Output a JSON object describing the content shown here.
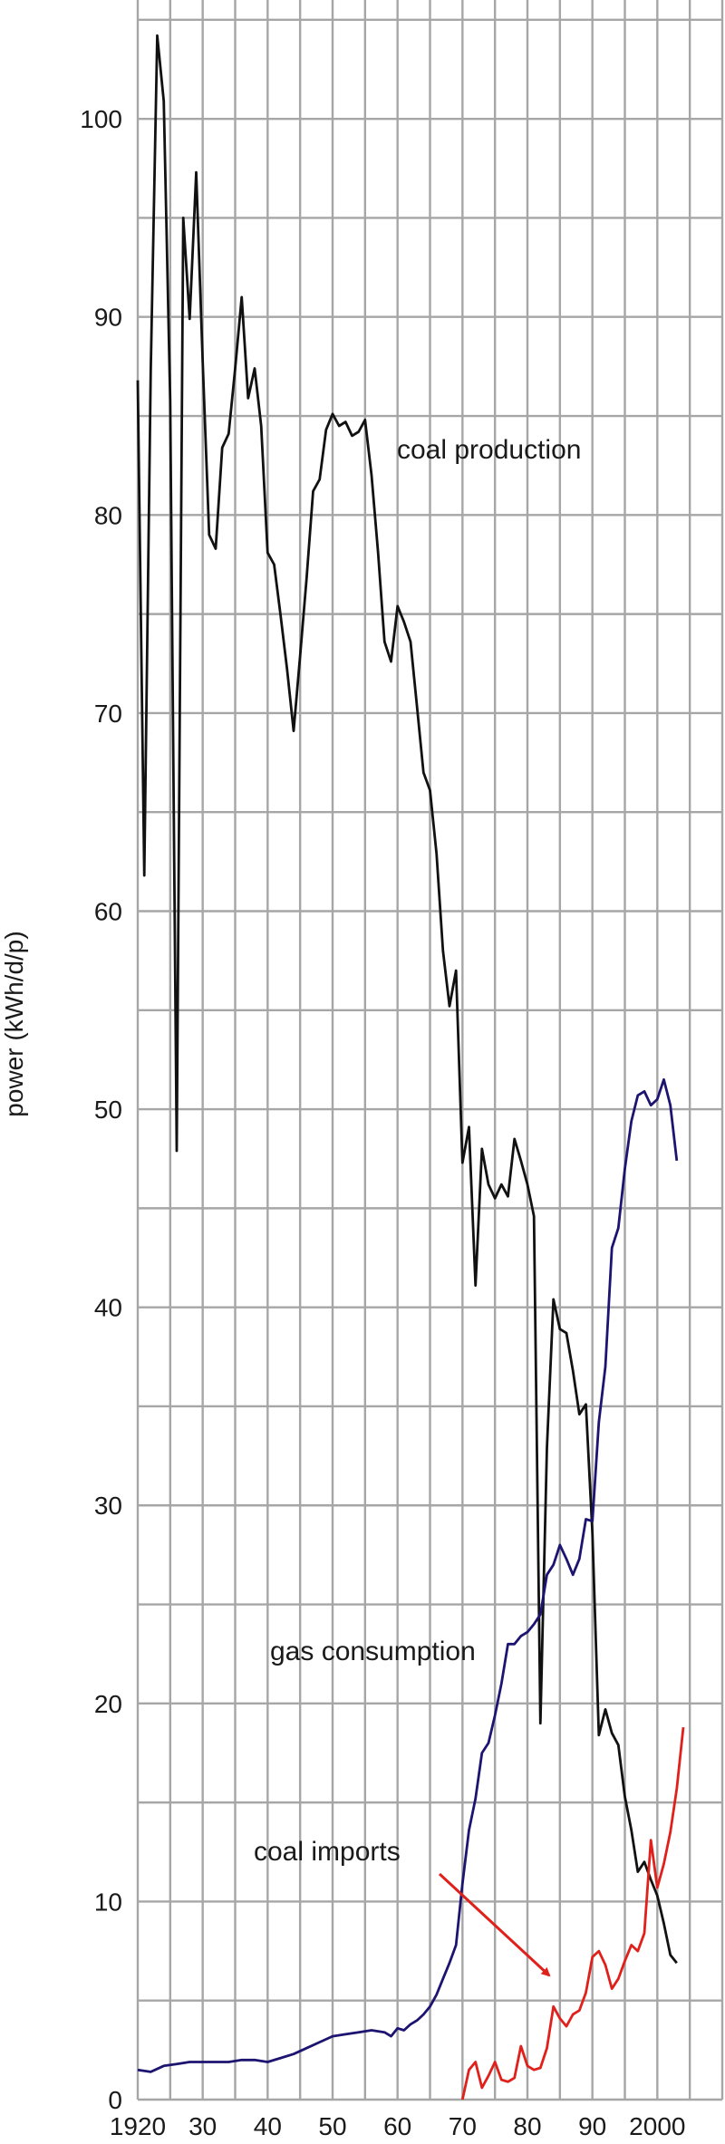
{
  "chart_data": {
    "type": "line",
    "title": "",
    "xlabel": "",
    "ylabel": "power (kWh/d/p)",
    "xlim": [
      1920,
      2010
    ],
    "ylim": [
      0,
      106
    ],
    "grid": true,
    "x_ticks": [
      {
        "value": 1920,
        "label": "1920"
      },
      {
        "value": 1930,
        "label": "30"
      },
      {
        "value": 1940,
        "label": "40"
      },
      {
        "value": 1950,
        "label": "50"
      },
      {
        "value": 1960,
        "label": "60"
      },
      {
        "value": 1970,
        "label": "70"
      },
      {
        "value": 1980,
        "label": "80"
      },
      {
        "value": 1990,
        "label": "90"
      },
      {
        "value": 2000,
        "label": "2000"
      }
    ],
    "y_ticks": [
      {
        "value": 0,
        "label": "0"
      },
      {
        "value": 10,
        "label": "10"
      },
      {
        "value": 20,
        "label": "20"
      },
      {
        "value": 30,
        "label": "30"
      },
      {
        "value": 40,
        "label": "40"
      },
      {
        "value": 50,
        "label": "50"
      },
      {
        "value": 60,
        "label": "60"
      },
      {
        "value": 70,
        "label": "70"
      },
      {
        "value": 80,
        "label": "80"
      },
      {
        "value": 90,
        "label": "90"
      },
      {
        "value": 100,
        "label": "100"
      }
    ],
    "series": [
      {
        "name": "coal production",
        "color": "#111111",
        "x": [
          1920,
          1921,
          1922,
          1923,
          1924,
          1925,
          1926,
          1927,
          1928,
          1929,
          1930,
          1931,
          1932,
          1933,
          1934,
          1935,
          1936,
          1937,
          1938,
          1939,
          1940,
          1941,
          1942,
          1943,
          1944,
          1945,
          1946,
          1947,
          1948,
          1949,
          1950,
          1951,
          1952,
          1953,
          1954,
          1955,
          1956,
          1957,
          1958,
          1959,
          1960,
          1961,
          1962,
          1963,
          1964,
          1965,
          1966,
          1967,
          1968,
          1969,
          1970,
          1971,
          1972,
          1973,
          1974,
          1975,
          1976,
          1977,
          1978,
          1979,
          1980,
          1981,
          1982,
          1983,
          1984,
          1985,
          1986,
          1987,
          1988,
          1989,
          1990,
          1991,
          1992,
          1993,
          1994,
          1995,
          1996,
          1997,
          1998,
          1999,
          2000,
          2001,
          2002,
          2003,
          2004,
          2005,
          2006
        ],
        "values": [
          86.8,
          61.8,
          87.2,
          104.2,
          100.9,
          85.8,
          47.9,
          95.0,
          89.9,
          97.3,
          87.7,
          79.0,
          78.3,
          83.4,
          84.1,
          87.4,
          91.0,
          85.9,
          87.4,
          84.5,
          78.1,
          77.5,
          74.9,
          72.2,
          69.1,
          72.9,
          76.8,
          81.2,
          81.8,
          84.3,
          85.1,
          84.5,
          84.7,
          84.0,
          84.2,
          84.8,
          82.0,
          78.1,
          73.6,
          72.6,
          75.4,
          74.6,
          73.6,
          70.3,
          67.0,
          66.1,
          62.9,
          58.0,
          55.2,
          57.0,
          47.3,
          49.1,
          41.1,
          48.0,
          46.2,
          45.5,
          46.2,
          45.6,
          48.5,
          47.4,
          46.2,
          44.6,
          19.0,
          32.9,
          40.4,
          38.9,
          38.7,
          36.8,
          34.6,
          35.1,
          28.6,
          18.4,
          19.7,
          18.5,
          17.9,
          15.3,
          13.6,
          11.5,
          12.0,
          11.1,
          10.3,
          8.9,
          7.3,
          6.9,
          null,
          null,
          null
        ]
      },
      {
        "name": "gas consumption",
        "color": "#1c1470",
        "x": [
          1920,
          1922,
          1924,
          1926,
          1928,
          1930,
          1932,
          1934,
          1936,
          1938,
          1940,
          1942,
          1944,
          1946,
          1948,
          1950,
          1952,
          1954,
          1956,
          1958,
          1959,
          1960,
          1961,
          1962,
          1963,
          1964,
          1965,
          1966,
          1967,
          1968,
          1969,
          1970,
          1971,
          1972,
          1973,
          1974,
          1975,
          1976,
          1977,
          1978,
          1979,
          1980,
          1981,
          1982,
          1983,
          1984,
          1985,
          1986,
          1987,
          1988,
          1989,
          1990,
          1991,
          1992,
          1993,
          1994,
          1995,
          1996,
          1997,
          1998,
          1999,
          2000,
          2001,
          2002,
          2003,
          2004,
          2005,
          2006
        ],
        "values": [
          1.5,
          1.4,
          1.7,
          1.8,
          1.9,
          1.9,
          1.9,
          1.9,
          2.0,
          2.0,
          1.9,
          2.1,
          2.3,
          2.6,
          2.9,
          3.2,
          3.3,
          3.4,
          3.5,
          3.4,
          3.2,
          3.6,
          3.5,
          3.8,
          4.0,
          4.3,
          4.7,
          5.3,
          6.1,
          6.9,
          7.8,
          10.9,
          13.6,
          15.2,
          17.5,
          18.0,
          19.4,
          21.0,
          23.0,
          23.0,
          23.4,
          23.6,
          24.0,
          24.5,
          26.5,
          27.0,
          28.0,
          27.3,
          26.5,
          27.3,
          29.3,
          29.2,
          34.2,
          37.0,
          43.0,
          44.0,
          47.0,
          49.4,
          50.7,
          50.9,
          50.2,
          50.5,
          51.5,
          50.2,
          47.4,
          null,
          null,
          null
        ]
      },
      {
        "name": "coal imports",
        "color": "#e0201a",
        "x": [
          1970,
          1971,
          1972,
          1973,
          1974,
          1975,
          1976,
          1977,
          1978,
          1979,
          1980,
          1981,
          1982,
          1983,
          1984,
          1985,
          1986,
          1987,
          1988,
          1989,
          1990,
          1991,
          1992,
          1993,
          1994,
          1995,
          1996,
          1997,
          1998,
          1999,
          2000,
          2001,
          2002,
          2003,
          2004,
          2005,
          2006
        ],
        "values": [
          0.0,
          1.5,
          1.9,
          0.6,
          1.2,
          1.9,
          1.0,
          0.9,
          1.1,
          2.7,
          1.7,
          1.5,
          1.6,
          2.6,
          4.7,
          4.1,
          3.7,
          4.3,
          4.5,
          5.4,
          7.2,
          7.5,
          6.8,
          5.6,
          6.1,
          7.0,
          7.8,
          7.5,
          8.4,
          13.1,
          10.7,
          11.9,
          13.5,
          15.7,
          18.8,
          null,
          null
        ]
      }
    ],
    "annotations": [
      {
        "text": "coal production",
        "series": "coal production"
      },
      {
        "text": "gas consumption",
        "series": "gas consumption"
      },
      {
        "text": "coal imports",
        "series": "coal imports",
        "arrow": true
      }
    ]
  }
}
